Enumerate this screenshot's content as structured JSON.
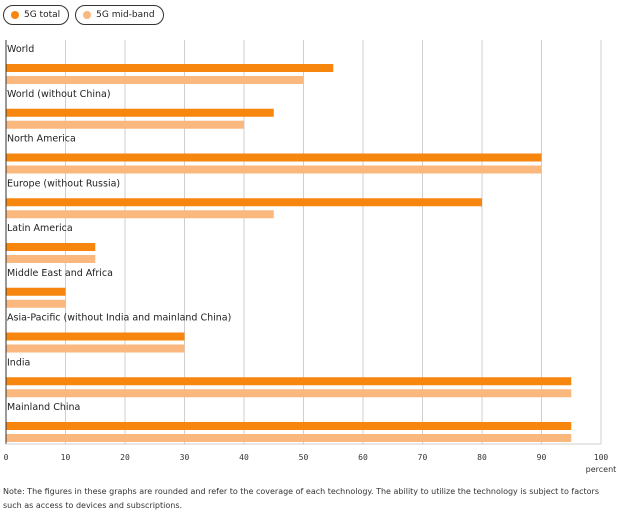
{
  "legend": {
    "items": [
      {
        "label": "5G total",
        "color": "#f7860f"
      },
      {
        "label": "5G mid-band",
        "color": "#fbb87e"
      }
    ]
  },
  "chart_data": {
    "type": "bar",
    "orientation": "horizontal",
    "categories": [
      "World",
      "World (without China)",
      "North America",
      "Europe (without Russia)",
      "Latin America",
      "Middle East and Africa",
      "Asia-Pacific (without India and mainland China)",
      "India",
      "Mainland China"
    ],
    "series": [
      {
        "name": "5G total",
        "color": "#f7860f",
        "values": [
          55,
          45,
          90,
          80,
          15,
          10,
          30,
          95,
          95
        ]
      },
      {
        "name": "5G mid-band",
        "color": "#fbb87e",
        "values": [
          50,
          40,
          90,
          45,
          15,
          10,
          30,
          95,
          95
        ]
      }
    ],
    "xlim": [
      0,
      100
    ],
    "xticks": [
      "0",
      "10",
      "20",
      "30",
      "40",
      "50",
      "60",
      "70",
      "80",
      "90",
      "100"
    ],
    "xlabel": "percent",
    "grid": true,
    "legend_position": "top-left"
  },
  "note": "Note: The figures in these graphs are rounded and refer to the coverage of each technology. The ability to utilize the technology is subject to factors such as access to devices and subscriptions."
}
